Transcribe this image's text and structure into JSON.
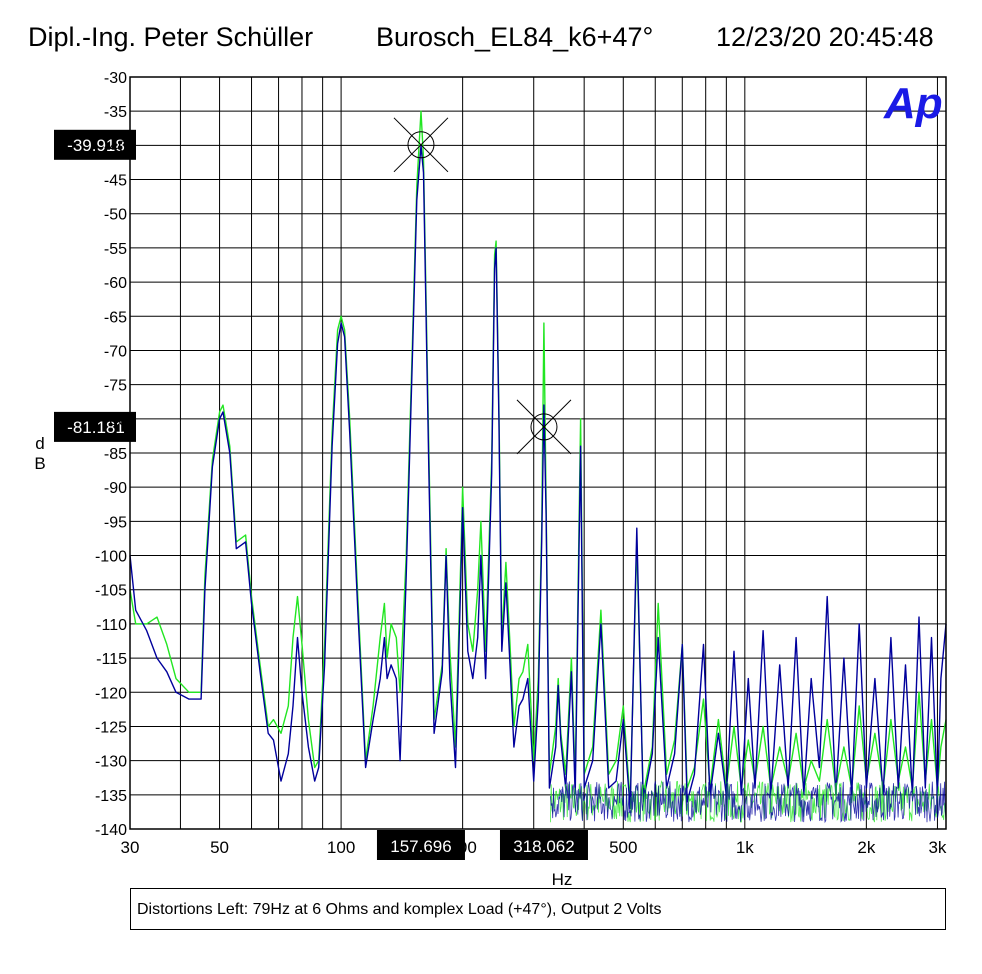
{
  "header": {
    "author": "Dipl.-Ing. Peter Schüller",
    "device": "Burosch_EL84_k6+47°",
    "datetime": "12/23/20 20:45:48"
  },
  "logo_text": "Ap",
  "caption": "Distortions Left: 79Hz at 6 Ohms and komplex Load (+47°), Output 2 Volts",
  "chart_data": {
    "type": "line",
    "title": "Burosch_EL84_k6+47°",
    "xlabel": "Hz",
    "ylabel": "dB",
    "ylabel_chars": [
      "d",
      "B"
    ],
    "xscale": "log",
    "xlim": [
      30,
      3150
    ],
    "ylim": [
      -140,
      -30
    ],
    "yticks": [
      -30,
      -35,
      -40,
      -45,
      -50,
      -55,
      -60,
      -65,
      -70,
      -75,
      -80,
      -85,
      -90,
      -95,
      -100,
      -105,
      -110,
      -115,
      -120,
      -125,
      -130,
      -135,
      -140
    ],
    "xticks": [
      {
        "value": 30,
        "label": "30"
      },
      {
        "value": 50,
        "label": "50"
      },
      {
        "value": 100,
        "label": "100"
      },
      {
        "value": 200,
        "label": "200"
      },
      {
        "value": 500,
        "label": "500"
      },
      {
        "value": 1000,
        "label": "1k"
      },
      {
        "value": 2000,
        "label": "2k"
      },
      {
        "value": 3000,
        "label": "3k"
      }
    ],
    "grid": true,
    "colors": {
      "green": "#22e622",
      "blue": "#00009c",
      "label_bg": "#000000",
      "label_fg": "#ffffff",
      "logo": "#1a1ae6"
    },
    "cursors": [
      {
        "x": 157.696,
        "y": -39.918,
        "x_label": "157.696",
        "y_label": "-39.918"
      },
      {
        "x": 318.062,
        "y": -81.181,
        "x_label": "318.062",
        "y_label": "-81.181"
      }
    ],
    "noise_floor": {
      "start_hz": 330,
      "end_hz": 3150,
      "level_db": -136
    },
    "series": [
      {
        "color": "green",
        "points": [
          [
            30,
            -105
          ],
          [
            31,
            -110
          ],
          [
            33,
            -110
          ],
          [
            35,
            -109
          ],
          [
            37,
            -113
          ],
          [
            39,
            -118
          ],
          [
            42,
            -120
          ],
          [
            45,
            -120
          ],
          [
            46,
            -103
          ],
          [
            48,
            -86
          ],
          [
            50,
            -79
          ],
          [
            51,
            -78
          ],
          [
            53,
            -84
          ],
          [
            55,
            -98
          ],
          [
            58,
            -97
          ],
          [
            60,
            -106
          ],
          [
            63,
            -116
          ],
          [
            66,
            -125
          ],
          [
            68,
            -124
          ],
          [
            71,
            -126
          ],
          [
            74,
            -122
          ],
          [
            76,
            -112
          ],
          [
            78,
            -106
          ],
          [
            80,
            -113
          ],
          [
            83,
            -124
          ],
          [
            86,
            -131
          ],
          [
            88,
            -130
          ],
          [
            91,
            -113
          ],
          [
            95,
            -82
          ],
          [
            98,
            -67
          ],
          [
            100,
            -65
          ],
          [
            102,
            -67
          ],
          [
            105,
            -80
          ],
          [
            110,
            -106
          ],
          [
            115,
            -130
          ],
          [
            120,
            -122
          ],
          [
            125,
            -112
          ],
          [
            128,
            -107
          ],
          [
            130,
            -115
          ],
          [
            133,
            -110
          ],
          [
            137,
            -112
          ],
          [
            140,
            -120
          ],
          [
            145,
            -100
          ],
          [
            150,
            -70
          ],
          [
            154,
            -46
          ],
          [
            157.7,
            -35
          ],
          [
            160,
            -42
          ],
          [
            165,
            -85
          ],
          [
            170,
            -124
          ],
          [
            178,
            -116
          ],
          [
            182,
            -99
          ],
          [
            186,
            -114
          ],
          [
            192,
            -128
          ],
          [
            198,
            -100
          ],
          [
            200,
            -90
          ],
          [
            206,
            -110
          ],
          [
            212,
            -114
          ],
          [
            218,
            -105
          ],
          [
            222,
            -95
          ],
          [
            228,
            -114
          ],
          [
            236,
            -86
          ],
          [
            240,
            -56
          ],
          [
            242,
            -54
          ],
          [
            246,
            -78
          ],
          [
            250,
            -112
          ],
          [
            256,
            -101
          ],
          [
            262,
            -113
          ],
          [
            268,
            -125
          ],
          [
            276,
            -118
          ],
          [
            282,
            -117
          ],
          [
            290,
            -113
          ],
          [
            300,
            -130
          ],
          [
            308,
            -118
          ],
          [
            314,
            -96
          ],
          [
            318,
            -66
          ],
          [
            322,
            -92
          ],
          [
            328,
            -132
          ],
          [
            340,
            -125
          ],
          [
            345,
            -118
          ],
          [
            350,
            -126
          ],
          [
            360,
            -132
          ],
          [
            372,
            -115
          ],
          [
            380,
            -133
          ],
          [
            392,
            -80
          ],
          [
            400,
            -132
          ],
          [
            420,
            -128
          ],
          [
            440,
            -108
          ],
          [
            460,
            -132
          ],
          [
            480,
            -130
          ],
          [
            500,
            -122
          ],
          [
            520,
            -136
          ],
          [
            540,
            -98
          ],
          [
            560,
            -135
          ],
          [
            590,
            -128
          ],
          [
            610,
            -107
          ],
          [
            640,
            -132
          ],
          [
            670,
            -127
          ],
          [
            700,
            -113
          ],
          [
            720,
            -134
          ],
          [
            750,
            -131
          ],
          [
            790,
            -121
          ],
          [
            820,
            -134
          ],
          [
            860,
            -124
          ],
          [
            900,
            -134
          ],
          [
            940,
            -125
          ],
          [
            980,
            -134
          ],
          [
            1020,
            -127
          ],
          [
            1060,
            -133
          ],
          [
            1110,
            -125
          ],
          [
            1160,
            -134
          ],
          [
            1220,
            -128
          ],
          [
            1280,
            -133
          ],
          [
            1340,
            -126
          ],
          [
            1400,
            -134
          ],
          [
            1460,
            -130
          ],
          [
            1530,
            -133
          ],
          [
            1600,
            -124
          ],
          [
            1680,
            -134
          ],
          [
            1760,
            -128
          ],
          [
            1840,
            -134
          ],
          [
            1920,
            -122
          ],
          [
            2000,
            -133
          ],
          [
            2100,
            -126
          ],
          [
            2200,
            -134
          ],
          [
            2300,
            -124
          ],
          [
            2400,
            -133
          ],
          [
            2500,
            -128
          ],
          [
            2600,
            -134
          ],
          [
            2700,
            -120
          ],
          [
            2800,
            -133
          ],
          [
            2900,
            -124
          ],
          [
            3000,
            -134
          ],
          [
            3060,
            -128
          ],
          [
            3150,
            -124
          ]
        ]
      },
      {
        "color": "blue",
        "points": [
          [
            30,
            -100
          ],
          [
            31,
            -108
          ],
          [
            33,
            -111
          ],
          [
            35,
            -115
          ],
          [
            37,
            -117
          ],
          [
            39,
            -120
          ],
          [
            42,
            -121
          ],
          [
            45,
            -121
          ],
          [
            46,
            -105
          ],
          [
            48,
            -87
          ],
          [
            50,
            -80
          ],
          [
            51,
            -79
          ],
          [
            53,
            -85
          ],
          [
            55,
            -99
          ],
          [
            58,
            -98
          ],
          [
            60,
            -107
          ],
          [
            63,
            -117
          ],
          [
            66,
            -126
          ],
          [
            68,
            -127
          ],
          [
            71,
            -133
          ],
          [
            74,
            -129
          ],
          [
            76,
            -122
          ],
          [
            78,
            -112
          ],
          [
            80,
            -120
          ],
          [
            83,
            -128
          ],
          [
            86,
            -133
          ],
          [
            88,
            -131
          ],
          [
            91,
            -116
          ],
          [
            95,
            -84
          ],
          [
            98,
            -69
          ],
          [
            100,
            -66
          ],
          [
            102,
            -68
          ],
          [
            105,
            -82
          ],
          [
            110,
            -108
          ],
          [
            115,
            -131
          ],
          [
            120,
            -124
          ],
          [
            125,
            -118
          ],
          [
            128,
            -112
          ],
          [
            130,
            -118
          ],
          [
            133,
            -116
          ],
          [
            137,
            -118
          ],
          [
            140,
            -130
          ],
          [
            145,
            -103
          ],
          [
            150,
            -72
          ],
          [
            154,
            -48
          ],
          [
            157.7,
            -40
          ],
          [
            160,
            -44
          ],
          [
            165,
            -88
          ],
          [
            170,
            -126
          ],
          [
            178,
            -117
          ],
          [
            182,
            -100
          ],
          [
            186,
            -118
          ],
          [
            192,
            -131
          ],
          [
            198,
            -103
          ],
          [
            200,
            -93
          ],
          [
            206,
            -114
          ],
          [
            212,
            -118
          ],
          [
            218,
            -112
          ],
          [
            222,
            -100
          ],
          [
            228,
            -118
          ],
          [
            236,
            -88
          ],
          [
            240,
            -58
          ],
          [
            242,
            -55
          ],
          [
            246,
            -80
          ],
          [
            250,
            -114
          ],
          [
            256,
            -104
          ],
          [
            262,
            -116
          ],
          [
            268,
            -128
          ],
          [
            276,
            -122
          ],
          [
            282,
            -121
          ],
          [
            290,
            -118
          ],
          [
            300,
            -133
          ],
          [
            308,
            -121
          ],
          [
            314,
            -98
          ],
          [
            318,
            -78
          ],
          [
            322,
            -94
          ],
          [
            328,
            -134
          ],
          [
            340,
            -128
          ],
          [
            345,
            -119
          ],
          [
            350,
            -127
          ],
          [
            360,
            -134
          ],
          [
            372,
            -117
          ],
          [
            380,
            -135
          ],
          [
            392,
            -84
          ],
          [
            400,
            -134
          ],
          [
            420,
            -130
          ],
          [
            440,
            -110
          ],
          [
            460,
            -134
          ],
          [
            480,
            -133
          ],
          [
            500,
            -124
          ],
          [
            520,
            -137
          ],
          [
            540,
            -96
          ],
          [
            560,
            -136
          ],
          [
            590,
            -129
          ],
          [
            610,
            -112
          ],
          [
            640,
            -134
          ],
          [
            670,
            -129
          ],
          [
            700,
            -113
          ],
          [
            720,
            -136
          ],
          [
            750,
            -132
          ],
          [
            790,
            -113
          ],
          [
            820,
            -135
          ],
          [
            860,
            -126
          ],
          [
            900,
            -135
          ],
          [
            940,
            -114
          ],
          [
            980,
            -135
          ],
          [
            1020,
            -118
          ],
          [
            1060,
            -134
          ],
          [
            1110,
            -111
          ],
          [
            1160,
            -135
          ],
          [
            1220,
            -116
          ],
          [
            1280,
            -134
          ],
          [
            1340,
            -112
          ],
          [
            1400,
            -135
          ],
          [
            1460,
            -118
          ],
          [
            1530,
            -131
          ],
          [
            1600,
            -106
          ],
          [
            1680,
            -135
          ],
          [
            1760,
            -115
          ],
          [
            1840,
            -135
          ],
          [
            1920,
            -110
          ],
          [
            2000,
            -134
          ],
          [
            2100,
            -118
          ],
          [
            2200,
            -135
          ],
          [
            2300,
            -112
          ],
          [
            2400,
            -134
          ],
          [
            2500,
            -116
          ],
          [
            2600,
            -135
          ],
          [
            2700,
            -109
          ],
          [
            2800,
            -134
          ],
          [
            2900,
            -112
          ],
          [
            3000,
            -135
          ],
          [
            3060,
            -118
          ],
          [
            3150,
            -110
          ]
        ]
      }
    ]
  }
}
